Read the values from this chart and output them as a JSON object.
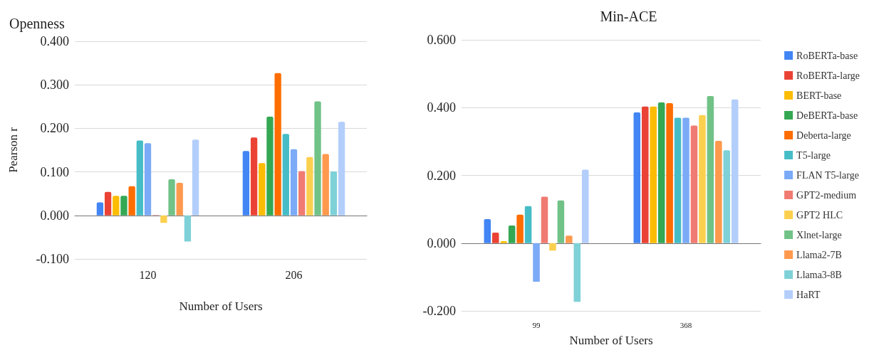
{
  "chart_data": [
    {
      "type": "bar",
      "title": "Openness",
      "xlabel": "Number of Users",
      "ylabel": "Pearson r",
      "categories": [
        "120",
        "206"
      ],
      "ylim": [
        -0.1,
        0.4
      ],
      "yticks": [
        {
          "value": -0.1,
          "label": "-0.100"
        },
        {
          "value": 0,
          "label": "0.000"
        },
        {
          "value": 0.1,
          "label": "0.100"
        },
        {
          "value": 0.2,
          "label": "0.200"
        },
        {
          "value": 0.3,
          "label": "0.300"
        },
        {
          "value": 0.4,
          "label": "0.400"
        }
      ],
      "grid": "y",
      "legend": false,
      "series": [
        {
          "color": "#4285f4",
          "values": [
            0.03,
            0.148
          ]
        },
        {
          "color": "#ea4335",
          "values": [
            0.054,
            0.179
          ]
        },
        {
          "color": "#fbbc04",
          "values": [
            0.045,
            0.12
          ]
        },
        {
          "color": "#34a853",
          "values": [
            0.045,
            0.227
          ]
        },
        {
          "color": "#ff6d01",
          "values": [
            0.067,
            0.327
          ]
        },
        {
          "color": "#46bdc6",
          "values": [
            0.172,
            0.187
          ]
        },
        {
          "color": "#7baaf7",
          "values": [
            0.166,
            0.152
          ]
        },
        {
          "color": "#f07b72",
          "values": [
            0.001,
            0.102
          ]
        },
        {
          "color": "#fcd04f",
          "values": [
            -0.017,
            0.134
          ]
        },
        {
          "color": "#71c287",
          "values": [
            0.083,
            0.262
          ]
        },
        {
          "color": "#ff994d",
          "values": [
            0.075,
            0.141
          ]
        },
        {
          "color": "#7ed1d7",
          "values": [
            -0.06,
            0.101
          ]
        },
        {
          "color": "#b3cefb",
          "values": [
            0.174,
            0.215
          ]
        }
      ]
    },
    {
      "type": "bar",
      "title": "Min-ACE",
      "xlabel": "Number of Users",
      "categories": [
        "99",
        "368"
      ],
      "ylim": [
        -0.2,
        0.6
      ],
      "yticks": [
        {
          "value": -0.2,
          "label": "-0.200"
        },
        {
          "value": 0,
          "label": "0.000"
        },
        {
          "value": 0.2,
          "label": "0.200"
        },
        {
          "value": 0.4,
          "label": "0.400"
        },
        {
          "value": 0.6,
          "label": "0.600"
        }
      ],
      "grid": "y",
      "legend": "right",
      "series": [
        {
          "name": "RoBERTa-base",
          "color": "#4285f4",
          "values": [
            0.071,
            0.386
          ]
        },
        {
          "name": "RoBERTa-large",
          "color": "#ea4335",
          "values": [
            0.031,
            0.403
          ]
        },
        {
          "name": "BERT-base",
          "color": "#fbbc04",
          "values": [
            0.006,
            0.403
          ]
        },
        {
          "name": "DeBERTa-base",
          "color": "#34a853",
          "values": [
            0.052,
            0.415
          ]
        },
        {
          "name": "Deberta-large",
          "color": "#ff6d01",
          "values": [
            0.084,
            0.413
          ]
        },
        {
          "name": "T5-large",
          "color": "#46bdc6",
          "values": [
            0.109,
            0.37
          ]
        },
        {
          "name": "FLAN T5-large",
          "color": "#7baaf7",
          "values": [
            -0.114,
            0.37
          ]
        },
        {
          "name": "GPT2-medium",
          "color": "#f07b72",
          "values": [
            0.137,
            0.347
          ]
        },
        {
          "name": "GPT2 HLC",
          "color": "#fcd04f",
          "values": [
            -0.022,
            0.378
          ]
        },
        {
          "name": "Xlnet-large",
          "color": "#71c287",
          "values": [
            0.126,
            0.434
          ]
        },
        {
          "name": "Llama2-7B",
          "color": "#ff994d",
          "values": [
            0.022,
            0.302
          ]
        },
        {
          "name": "Llama3-8B",
          "color": "#7ed1d7",
          "values": [
            -0.173,
            0.274
          ]
        },
        {
          "name": "HaRT",
          "color": "#b3cefb",
          "values": [
            0.217,
            0.424
          ]
        }
      ]
    }
  ]
}
